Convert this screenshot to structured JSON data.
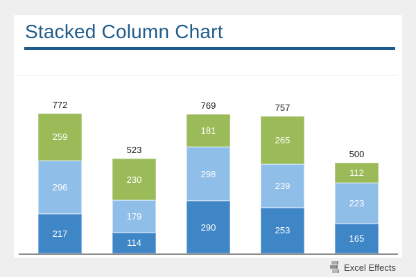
{
  "page": {
    "background": "#EFEFEF",
    "card_background": "#FFFFFF"
  },
  "header": {
    "title": "Stacked Column Chart",
    "title_color": "#1F5C8B",
    "rule_color": "#1F5C8B"
  },
  "chart_data": {
    "type": "bar",
    "stacked": true,
    "title": "Stacked Column Chart",
    "xlabel": "",
    "ylabel": "",
    "legend_position": "none",
    "grid": false,
    "x_axis_labels_visible": false,
    "y_axis_labels_visible": false,
    "axis_color": "#8C8C8C",
    "totals": [
      772,
      523,
      769,
      757,
      500
    ],
    "series": [
      {
        "name": "series-1-bottom",
        "color": "#3E86C6",
        "border": "#85B1DC",
        "values": [
          217,
          114,
          290,
          253,
          165
        ]
      },
      {
        "name": "series-2-middle",
        "color": "#8FBEE8",
        "border": "#C6DFF5",
        "values": [
          296,
          179,
          298,
          239,
          223
        ]
      },
      {
        "name": "series-3-top",
        "color": "#9BBB59",
        "border": "#B7CE8C",
        "values": [
          259,
          230,
          181,
          265,
          112
        ]
      }
    ],
    "segment_label_color": "#FFFFFF",
    "total_label_color": "#1A1A1A"
  },
  "footer": {
    "brand": "Excel Effects"
  }
}
